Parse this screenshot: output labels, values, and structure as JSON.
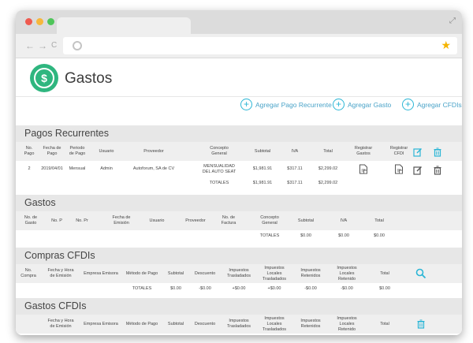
{
  "browser": {
    "expand_glyph": "⤢",
    "back_glyph": "←",
    "forward_glyph": "→",
    "reload_glyph": "C",
    "star_glyph": "★"
  },
  "app": {
    "title": "Gastos",
    "logo_glyph": "$"
  },
  "actions": [
    {
      "label": "Agregar Pago Recurrente"
    },
    {
      "label": "Agregar Gasto"
    },
    {
      "label": "Agregar CFDIs"
    }
  ],
  "pagos_recurrentes": {
    "title": "Pagos Recurrentes",
    "columns": [
      "No.\nPago",
      "Fecha de\nPago",
      "Periodo\nde Pago",
      "Usuario",
      "Proveedor",
      "Concepto\nGeneral",
      "Subtotal",
      "IVA",
      "Total",
      "Registrar\nGastos",
      "Registrar\nCFDI"
    ],
    "row": [
      "2",
      "2019/04/01",
      "Mensual",
      "Admin",
      "Autoforum, SA de CV",
      "MENSUALIDAD\nDEL AUTO SEAT",
      "$1,981.91",
      "$317.11",
      "$2,299.02"
    ],
    "totals": {
      "label": "TOTALES",
      "subtotal": "$1,981.91",
      "iva": "$317.11",
      "total": "$2,299.02"
    }
  },
  "gastos": {
    "title": "Gastos",
    "columns": [
      "No. de\nGasto",
      "No. P",
      "No. Pr",
      "Fecha de\nEmisión",
      "Usuario",
      "Proveedor",
      "No. de\nFactura",
      "Concepto\nGeneral",
      "Subtotal",
      "IVA",
      "Total"
    ],
    "totals": {
      "label": "TOTALES",
      "subtotal": "$0.00",
      "iva": "$0.00",
      "total": "$0.00"
    }
  },
  "compras_cfdis": {
    "title": "Compras CFDIs",
    "columns": [
      "No.\nCompra",
      "Fecha y Hora\nde Emisión",
      "Empresa Emisora",
      "Método de Pago",
      "Subtotal",
      "Descuento",
      "Impuestos\nTrasladados",
      "Impuestos\nLocales\nTrasladados",
      "Impuestos\nRetenidos",
      "Impuestos\nLocales\nRetenido",
      "Total"
    ],
    "totals": {
      "label": "TOTALES",
      "subtotal": "$0.00",
      "descuento": "-$0.00",
      "imp_tras": "+$0.00",
      "imp_loc_tras": "+$0.00",
      "imp_ret": "-$0.00",
      "imp_loc_ret": "-$0.00",
      "total": "$0.00"
    }
  },
  "gastos_cfdis": {
    "title": "Gastos CFDIs",
    "columns": [
      "Fecha y Hora\nde Emisión",
      "Empresa Emisora",
      "Método de Pago",
      "Subtotal",
      "Descuento",
      "Impuestos\nTrasladados",
      "Impuestos\nLocales\nTrasladados",
      "Impuestos\nRetenidos",
      "Impuestos\nLocales\nRetenido",
      "Total"
    ]
  },
  "colors": {
    "accent": "#2bb6d6",
    "logo_green": "#2fb67f",
    "section_bg": "#e7e7e7"
  }
}
